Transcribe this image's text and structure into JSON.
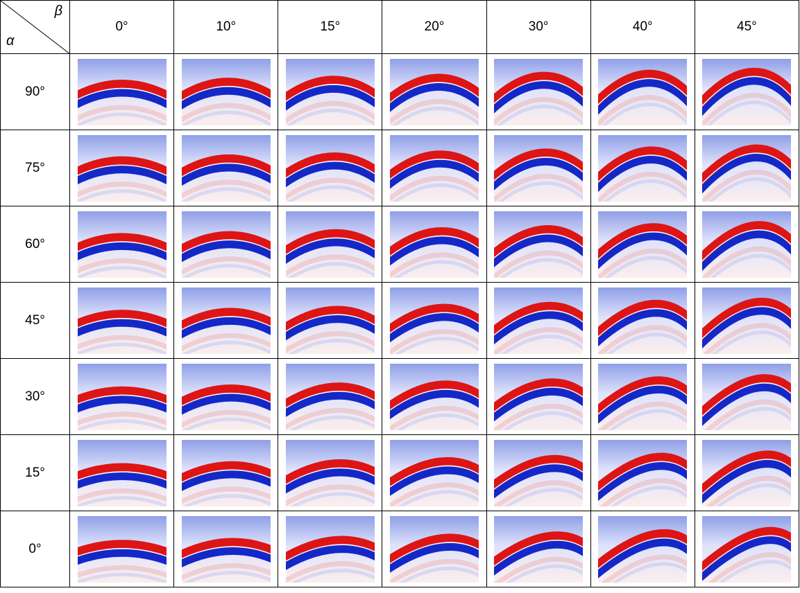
{
  "table": {
    "corner": {
      "top": "β",
      "bottom": "α"
    },
    "columns": [
      "0°",
      "10°",
      "15°",
      "20°",
      "30°",
      "40°",
      "45°"
    ],
    "rows": [
      "90°",
      "75°",
      "60°",
      "45°",
      "30°",
      "15°",
      "0°"
    ]
  }
}
